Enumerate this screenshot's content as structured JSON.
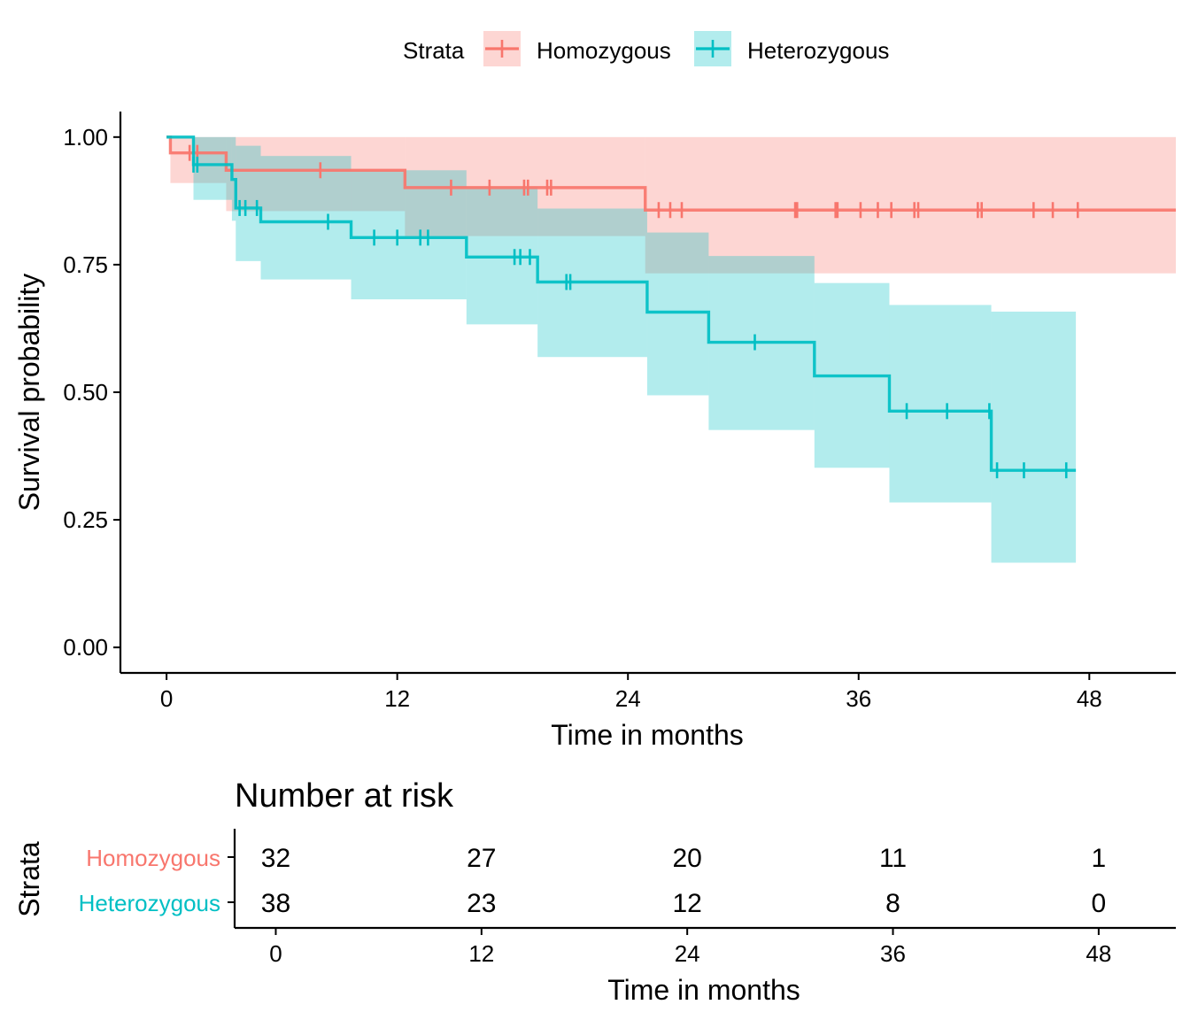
{
  "chart_data": [
    {
      "type": "line",
      "subtype": "kaplan-meier",
      "title": "",
      "xlabel": "Time in months",
      "ylabel": "Survival probability",
      "xlim": [
        -2.4,
        52.5
      ],
      "ylim": [
        -0.05,
        1.05
      ],
      "x_ticks": [
        0,
        12,
        24,
        36,
        48
      ],
      "y_ticks": [
        0,
        0.25,
        0.5,
        0.75,
        1.0
      ],
      "y_tick_labels": [
        "0.00",
        "0.25",
        "0.50",
        "0.75",
        "1.00"
      ],
      "grid": false,
      "legend": {
        "position": "top",
        "title": "Strata",
        "entries": [
          "Homozygous",
          "Heterozygous"
        ]
      },
      "series": [
        {
          "name": "Homozygous",
          "color": "#F8766D",
          "end_x": 52.5,
          "steps": [
            {
              "x": 0,
              "y": 1.0,
              "lower": 1.0,
              "upper": 1.0
            },
            {
              "x": 0.2,
              "y": 0.969,
              "lower": 0.91,
              "upper": 1.0
            },
            {
              "x": 3.1,
              "y": 0.935,
              "lower": 0.855,
              "upper": 1.0
            },
            {
              "x": 12.4,
              "y": 0.901,
              "lower": 0.806,
              "upper": 1.0
            },
            {
              "x": 24.9,
              "y": 0.857,
              "lower": 0.733,
              "upper": 1.0
            }
          ],
          "censor_x": [
            1.2,
            1.6,
            8.0,
            14.8,
            16.8,
            18.6,
            18.8,
            19.8,
            20.0,
            25.6,
            26.2,
            26.8,
            32.7,
            32.8,
            34.8,
            34.9,
            36.1,
            37.0,
            37.7,
            38.9,
            39.1,
            42.2,
            42.4,
            45.1,
            46.1,
            47.4
          ]
        },
        {
          "name": "Heterozygous",
          "color": "#00BFC4",
          "end_x": 47.3,
          "steps": [
            {
              "x": 0,
              "y": 1.0,
              "lower": 1.0,
              "upper": 1.0
            },
            {
              "x": 1.4,
              "y": 0.946,
              "lower": 0.877,
              "upper": 1.0
            },
            {
              "x": 3.4,
              "y": 0.917,
              "lower": 0.836,
              "upper": 1.0
            },
            {
              "x": 3.6,
              "y": 0.861,
              "lower": 0.757,
              "upper": 0.983
            },
            {
              "x": 4.9,
              "y": 0.834,
              "lower": 0.721,
              "upper": 0.963
            },
            {
              "x": 9.6,
              "y": 0.803,
              "lower": 0.682,
              "upper": 0.935
            },
            {
              "x": 15.6,
              "y": 0.765,
              "lower": 0.633,
              "upper": 0.902
            },
            {
              "x": 19.3,
              "y": 0.716,
              "lower": 0.569,
              "upper": 0.86
            },
            {
              "x": 25.0,
              "y": 0.657,
              "lower": 0.494,
              "upper": 0.813
            },
            {
              "x": 28.2,
              "y": 0.598,
              "lower": 0.426,
              "upper": 0.767
            },
            {
              "x": 33.7,
              "y": 0.532,
              "lower": 0.352,
              "upper": 0.714
            },
            {
              "x": 37.6,
              "y": 0.463,
              "lower": 0.284,
              "upper": 0.671
            },
            {
              "x": 42.9,
              "y": 0.347,
              "lower": 0.166,
              "upper": 0.658
            }
          ],
          "censor_x": [
            1.4,
            1.6,
            3.8,
            4.1,
            4.7,
            8.4,
            10.8,
            12.0,
            13.2,
            13.6,
            18.1,
            18.4,
            18.9,
            20.8,
            21.0,
            30.6,
            38.5,
            40.6,
            42.8,
            43.2,
            44.6,
            46.8
          ]
        }
      ]
    },
    {
      "type": "table",
      "title": "Number at risk",
      "xlabel": "Time in months",
      "ylabel": "Strata",
      "x_ticks": [
        0,
        12,
        24,
        36,
        48
      ],
      "rows": [
        {
          "name": "Homozygous",
          "color": "#F8766D",
          "values": [
            "32",
            "27",
            "20",
            "11",
            "1"
          ]
        },
        {
          "name": "Heterozygous",
          "color": "#00BFC4",
          "values": [
            "38",
            "23",
            "12",
            "8",
            "0"
          ]
        }
      ]
    }
  ]
}
